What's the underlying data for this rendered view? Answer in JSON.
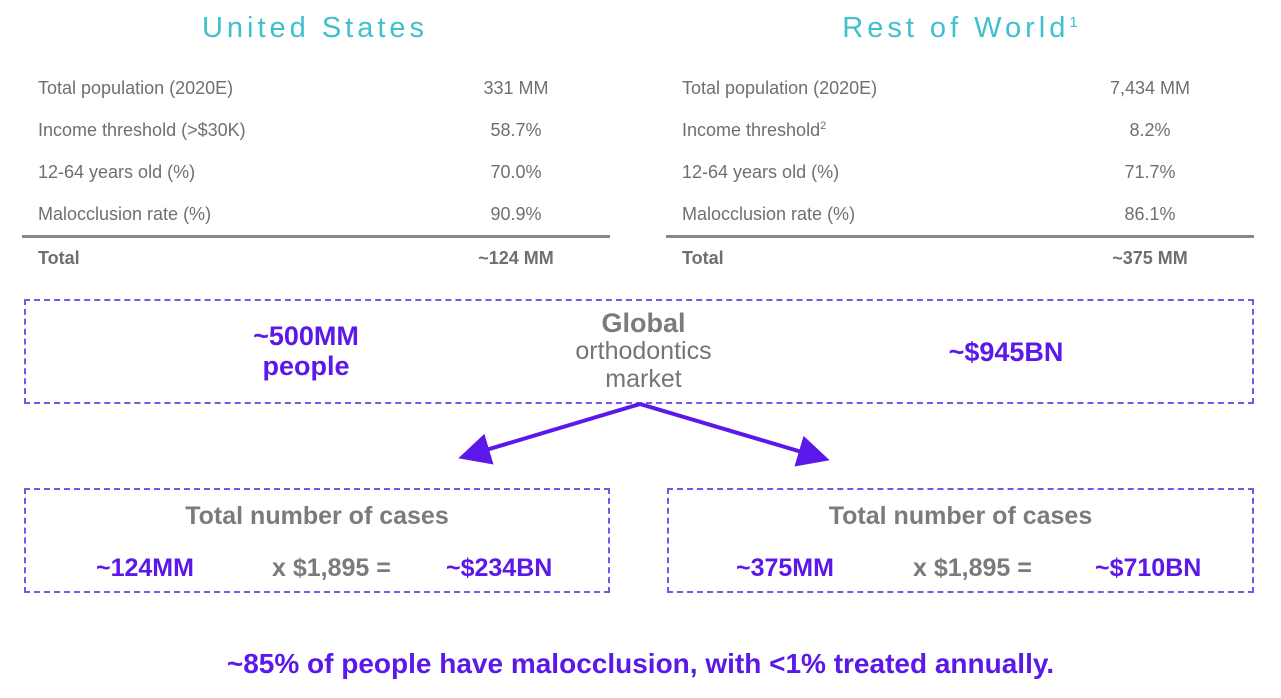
{
  "us": {
    "title": "United States",
    "rows": [
      {
        "label": "Total population (2020E)",
        "value": "331 MM"
      },
      {
        "label": "Income threshold (>$30K)",
        "value": "58.7%"
      },
      {
        "label": "12-64 years old (%)",
        "value": "70.0%"
      },
      {
        "label": "Malocclusion rate (%)",
        "value": "90.9%"
      }
    ],
    "total_label": "Total",
    "total_value": "~124 MM"
  },
  "row": {
    "title": "Rest of World",
    "title_sup": "1",
    "rows": [
      {
        "label": "Total population (2020E)",
        "value": "7,434 MM"
      },
      {
        "label": "Income threshold",
        "sup": "2",
        "value": "8.2%"
      },
      {
        "label": "12-64 years old (%)",
        "value": "71.7%"
      },
      {
        "label": "Malocclusion rate (%)",
        "value": "86.1%"
      }
    ],
    "total_label": "Total",
    "total_value": "~375 MM"
  },
  "global": {
    "people_line1": "~500MM",
    "people_line2": "people",
    "market_line1": "Global",
    "market_line2": "orthodontics",
    "market_line3": "market",
    "value": "~$945BN"
  },
  "us_cases": {
    "title": "Total number of cases",
    "count": "~124MM",
    "multiplier": "x $1,895 =",
    "result": "~$234BN"
  },
  "row_cases": {
    "title": "Total number of cases",
    "count": "~375MM",
    "multiplier": "x $1,895 =",
    "result": "~$710BN"
  },
  "tagline": "~85% of people have malocclusion, with <1% treated annually.",
  "colors": {
    "accent_teal": "#3fc0cc",
    "accent_purple": "#5b18e8",
    "text_gray": "#6f6f6f"
  }
}
